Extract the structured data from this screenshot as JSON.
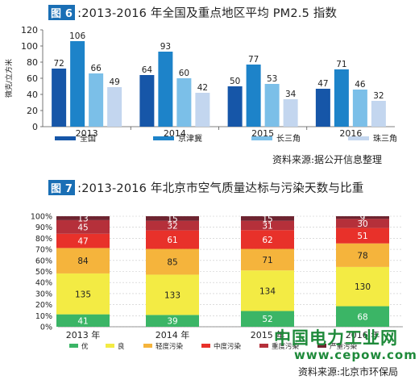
{
  "titles": {
    "fig6_tag": "图 6",
    "fig6_text": ":2013-2016 年全国及重点地区平均 PM2.5 指数",
    "fig7_tag": "图 7",
    "fig7_text": ":2013-2016 年北京市空气质量达标与污染天数与比重"
  },
  "sources": {
    "fig6": "资料来源:据公开信息整理",
    "fig7": "资料来源:北京市环保局"
  },
  "watermark": {
    "line1": "中国电力工业网",
    "line2": "www.cepow.com"
  },
  "chart_data": [
    {
      "type": "bar",
      "title": "2013-2016 年全国及重点地区平均 PM2.5 指数",
      "ylabel": "微克/立方米",
      "ylim": [
        0,
        120
      ],
      "yticks": [
        0,
        20,
        40,
        60,
        80,
        100,
        120
      ],
      "categories": [
        "2013",
        "2014",
        "2015",
        "2016"
      ],
      "series": [
        {
          "name": "全国",
          "color": "#1656a8",
          "values": [
            72,
            64,
            50,
            47
          ]
        },
        {
          "name": "京津冀",
          "color": "#1d83c9",
          "values": [
            106,
            93,
            77,
            71
          ]
        },
        {
          "name": "长三角",
          "color": "#7bbfe8",
          "values": [
            66,
            60,
            53,
            46
          ]
        },
        {
          "name": "珠三角",
          "color": "#c3d6ef",
          "values": [
            49,
            42,
            34,
            32
          ]
        }
      ],
      "legend_position": "bottom",
      "grid": false
    },
    {
      "type": "bar",
      "stacked": "percent",
      "title": "2013-2016 年北京市空气质量达标与污染天数与比重",
      "ylim": [
        0,
        100
      ],
      "yticks": [
        "0%",
        "10%",
        "20%",
        "30%",
        "40%",
        "50%",
        "60%",
        "70%",
        "80%",
        "90%",
        "100%"
      ],
      "categories": [
        "2013 年",
        "2014 年",
        "2015 年",
        "2016 年"
      ],
      "series": [
        {
          "name": "优",
          "color": "#3bb566",
          "values": [
            41,
            39,
            52,
            68
          ]
        },
        {
          "name": "良",
          "color": "#f3eb44",
          "values": [
            135,
            133,
            134,
            130
          ]
        },
        {
          "name": "轻度污染",
          "color": "#f5b43c",
          "values": [
            84,
            85,
            71,
            78
          ]
        },
        {
          "name": "中度污染",
          "color": "#e8312a",
          "values": [
            47,
            61,
            62,
            51
          ]
        },
        {
          "name": "重度污染",
          "color": "#b5303a",
          "values": [
            45,
            32,
            31,
            30
          ]
        },
        {
          "name": "严重污染",
          "color": "#6e2430",
          "values": [
            13,
            15,
            15,
            9
          ]
        }
      ],
      "legend_position": "bottom",
      "grid": true
    }
  ]
}
